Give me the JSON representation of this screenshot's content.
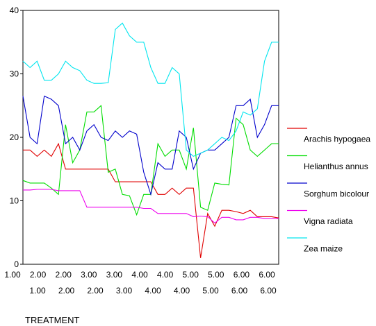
{
  "chart_data": {
    "type": "line",
    "xlabel": "TREATMENT",
    "ylim": [
      0,
      40
    ],
    "y_ticks": [
      "0",
      "10",
      "20",
      "30",
      "40"
    ],
    "x_tick_labels_top": [
      "1.00",
      "2.00",
      "2.00",
      "3.00",
      "3.00",
      "4.00",
      "4.00",
      "5.00",
      "5.00",
      "6.00",
      "6.00"
    ],
    "x_tick_labels_bottom": [
      "1.00",
      "2.00",
      "2.00",
      "3.00",
      "4.00",
      "4.00",
      "5.00",
      "6.00",
      "6.00"
    ],
    "legend_placement": "right",
    "series": [
      {
        "name": "",
        "color": "#e00000",
        "values": [
          18,
          18,
          17,
          18,
          17,
          19,
          15,
          15,
          15,
          15,
          15,
          15,
          15,
          13,
          13,
          13,
          13,
          13,
          13,
          11,
          11,
          12,
          11,
          12,
          12,
          1,
          8,
          6,
          8.5,
          8.5,
          8.3,
          8,
          8.5,
          7.5,
          7.5,
          7.5,
          7.3
        ]
      },
      {
        "name": "Arachis hypogaea",
        "color": "#00dd00",
        "values": [
          13.2,
          12.8,
          12.8,
          12.8,
          12,
          11,
          22,
          16,
          18,
          24,
          24,
          25,
          14.5,
          15,
          11,
          10.8,
          7.8,
          11,
          11,
          19,
          17,
          18,
          18,
          15,
          21.5,
          9,
          8.5,
          12.8,
          12.6,
          12.5,
          23,
          22,
          18,
          17,
          18,
          19,
          19
        ]
      },
      {
        "name": "Helianthus annus",
        "color": "#0000cc",
        "values": [
          26.5,
          20,
          19,
          26.5,
          26,
          25,
          19,
          20,
          18,
          21,
          22,
          20,
          19.5,
          21,
          20,
          21,
          20.5,
          14.5,
          11,
          16,
          15,
          15,
          21,
          20,
          15,
          17.5,
          18,
          18,
          19,
          20,
          25,
          25,
          26,
          20,
          22,
          25,
          25
        ]
      },
      {
        "name": "Sorghum bicolour",
        "color": "#ee00ee",
        "values": [
          11.7,
          11.7,
          11.8,
          11.8,
          11.8,
          11.6,
          11.6,
          11.6,
          11.6,
          9,
          9,
          9,
          9,
          9,
          9,
          9,
          9,
          8.8,
          8.8,
          8,
          8,
          8,
          8,
          8,
          7.5,
          7.6,
          7.5,
          6.5,
          7.4,
          7.4,
          7,
          7,
          7.4,
          7.4,
          7.2,
          7.2,
          7.2
        ]
      },
      {
        "name": "Vigna radiata",
        "color": "#00e5ee",
        "values": [
          32,
          31,
          32,
          29,
          29,
          30,
          32,
          31,
          30.5,
          29,
          28.5,
          28.5,
          28.6,
          37,
          38,
          36,
          35,
          35,
          31,
          28.5,
          28.5,
          31,
          30,
          18,
          17,
          17.5,
          18,
          19,
          20,
          19.5,
          21,
          24,
          23.5,
          24.5,
          32,
          35,
          35
        ]
      },
      {
        "name": "Zea maize",
        "color": "#000000",
        "values": []
      }
    ]
  }
}
